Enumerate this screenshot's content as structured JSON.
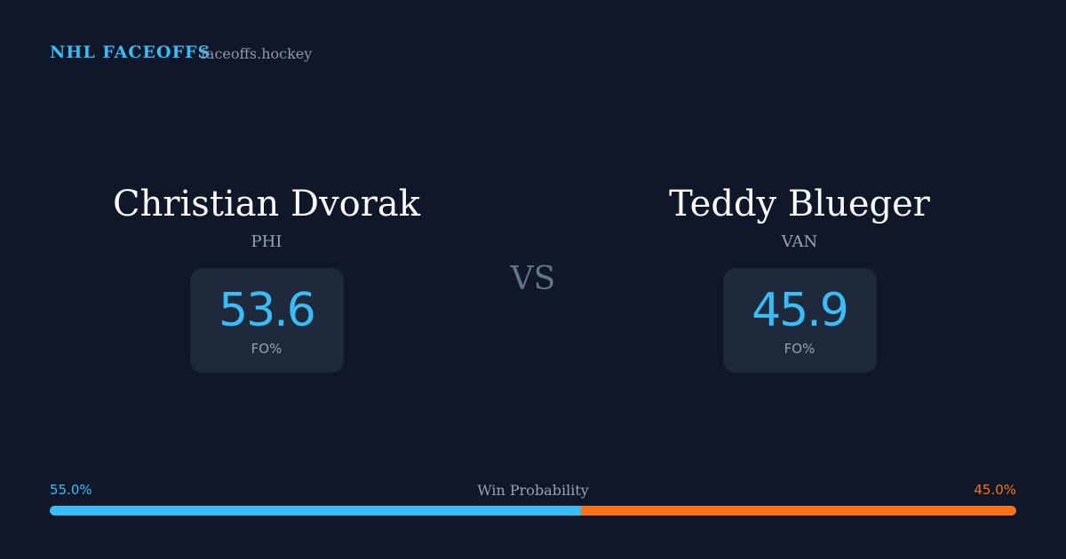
{
  "header": {
    "title": "NHL FACEOFFS",
    "site": "faceoffs.hockey"
  },
  "players": [
    {
      "name": "Christian Dvorak",
      "team": "PHI",
      "fo_pct": 53.6,
      "fo_label": "FO%"
    },
    {
      "name": "Teddy Blueger",
      "team": "VAN",
      "fo_pct": 45.9,
      "fo_label": "FO%"
    }
  ],
  "vs": "VS",
  "win_probability": {
    "label": "Win Probability",
    "values": [
      55.0,
      45.0
    ],
    "value_labels": [
      "55.0%",
      "45.0%"
    ],
    "colors": [
      "#38bdf8",
      "#f97316"
    ]
  }
}
